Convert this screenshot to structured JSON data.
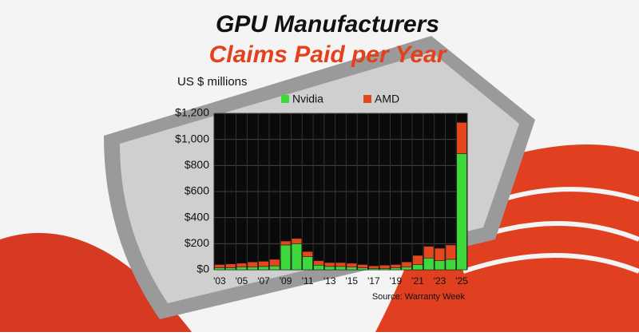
{
  "chart_data": {
    "type": "bar",
    "stacked": true,
    "title": "GPU Manufacturers",
    "subtitle": "Claims Paid per Year",
    "y_label": "US $ millions",
    "source": "Source: Warranty Week",
    "categories": [
      "'03",
      null,
      "'05",
      null,
      "'07",
      null,
      "'09",
      null,
      "'11",
      null,
      "'13",
      null,
      "'15",
      null,
      "'17",
      null,
      "'19",
      null,
      "'21",
      null,
      "'23",
      null,
      "'25"
    ],
    "series": [
      {
        "name": "Nvidia",
        "color": "#3ed83a",
        "values": [
          15,
          15,
          20,
          20,
          25,
          30,
          190,
          200,
          100,
          35,
          25,
          25,
          20,
          15,
          10,
          10,
          15,
          20,
          40,
          90,
          70,
          80,
          890
        ]
      },
      {
        "name": "AMD",
        "color": "#e4461d",
        "values": [
          25,
          30,
          30,
          40,
          40,
          50,
          30,
          40,
          40,
          35,
          30,
          30,
          30,
          25,
          20,
          25,
          25,
          40,
          70,
          90,
          95,
          110,
          240
        ]
      }
    ],
    "ylim": [
      0,
      1200
    ],
    "yticks": [
      {
        "value": 0,
        "label": "$0"
      },
      {
        "value": 200,
        "label": "$200"
      },
      {
        "value": 400,
        "label": "$400"
      },
      {
        "value": 600,
        "label": "$600"
      },
      {
        "value": 800,
        "label": "$800"
      },
      {
        "value": 1000,
        "label": "$1,000"
      },
      {
        "value": 1200,
        "label": "$1,200"
      }
    ],
    "grid": true
  }
}
